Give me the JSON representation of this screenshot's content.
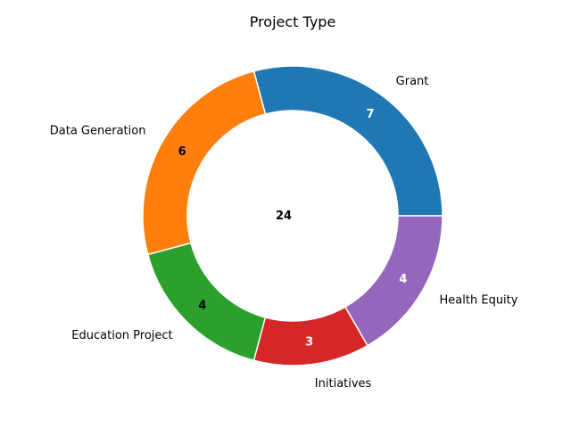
{
  "chart_data": {
    "type": "pie",
    "title": "Project Type",
    "categories": [
      "Grant",
      "Data Generation",
      "Education Project",
      "Initiatives",
      "Health Equity"
    ],
    "values": [
      7,
      6,
      4,
      3,
      4
    ],
    "colors": [
      "#1f77b4",
      "#ff7f0e",
      "#2ca02c",
      "#d62728",
      "#9467bd"
    ],
    "value_label_colors": [
      "#ffffff",
      "#000000",
      "#000000",
      "#ffffff",
      "#ffffff"
    ],
    "center_label": "24"
  }
}
